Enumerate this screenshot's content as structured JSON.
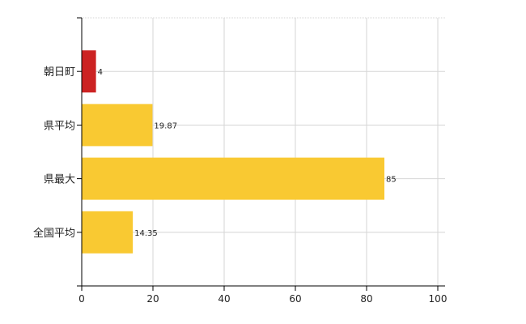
{
  "chart_data": {
    "type": "bar",
    "orientation": "horizontal",
    "categories": [
      "朝日町",
      "県平均",
      "県最大",
      "全国平均"
    ],
    "values": [
      4,
      19.87,
      85,
      14.35
    ],
    "value_labels": [
      "4",
      "19.87",
      "85",
      "14.35"
    ],
    "bar_colors": [
      "#cc2222",
      "#f9c932",
      "#f9c932",
      "#f9c932"
    ],
    "xlim": [
      0,
      100
    ],
    "xticks": [
      0,
      20,
      40,
      60,
      80,
      100
    ],
    "xtick_labels": [
      "0",
      "20",
      "40",
      "60",
      "80",
      "100"
    ],
    "grid": true,
    "title": "",
    "xlabel": "",
    "ylabel": ""
  }
}
